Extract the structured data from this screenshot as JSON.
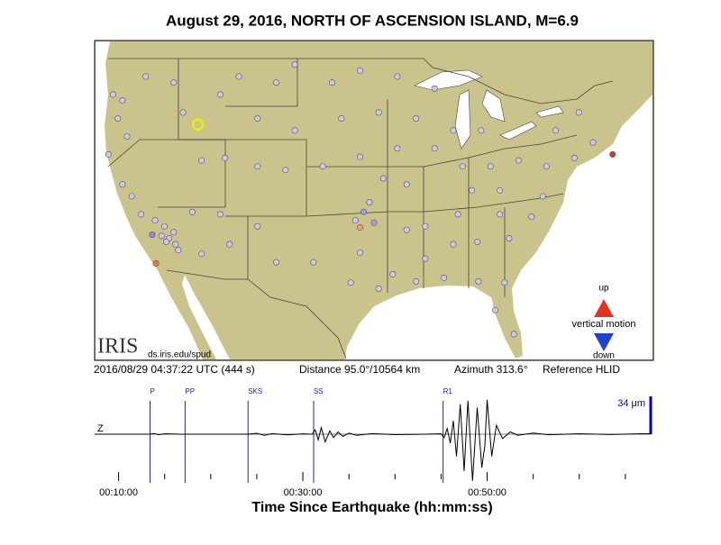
{
  "title": "August 29, 2016, NORTH OF ASCENSION ISLAND, M=6.9",
  "status": {
    "time": "2016/08/29 04:37:22 UTC (444 s)",
    "distance": "Distance  95.0°/10564 km",
    "azimuth": "Azimuth 313.6°",
    "reference": "Reference HLID"
  },
  "map": {
    "logo": "IRIS",
    "url": "ds.iris.edu/spud",
    "legend": {
      "up": "up",
      "label": "vertical motion",
      "down": "down"
    },
    "reference_station": {
      "lon": -114.4,
      "lat": 43.5,
      "color": "#f0f000"
    },
    "stations": {
      "lon": [
        -123.5,
        -122.5,
        -123,
        -122,
        -124,
        -122.5,
        -121.5,
        -120.5,
        -119,
        -118.3,
        -117.5,
        -116.8,
        -117,
        -116.5,
        -118,
        -117.8,
        -120,
        -117,
        -116,
        -112,
        -110,
        -106,
        -104,
        -100,
        -97,
        -93,
        -89,
        -108,
        -104,
        -99,
        -95,
        -91,
        -114,
        -111.5,
        -108,
        -105,
        -101,
        -97,
        -93,
        -89,
        -86,
        -83,
        -80,
        -77,
        -74,
        -72,
        -73.5,
        -76,
        -84,
        -87,
        -115,
        -112,
        -108,
        -106,
        -111,
        -114,
        -102,
        -98,
        -97,
        -95,
        -97.5,
        -96,
        -94.5,
        -92,
        -90,
        -92,
        -90,
        -87,
        -86.5,
        -84.4,
        -81,
        -78.6,
        -77.4,
        -82,
        -85,
        -82,
        -81.5,
        -82.5,
        -80.5,
        -84.3,
        -88,
        -91,
        -93.5,
        -69.9,
        -118.9,
        -97,
        -119.3,
        -96.6,
        -95.5
      ],
      "lat": [
        46,
        45.5,
        44,
        42.5,
        41,
        38.5,
        37.5,
        36,
        35.5,
        34.2,
        34,
        33.5,
        34.5,
        33,
        35,
        33.7,
        47.5,
        47,
        44.5,
        46,
        47.5,
        47,
        48.5,
        47,
        48,
        47.5,
        46.5,
        44,
        43,
        44,
        44.5,
        44,
        40.5,
        40.7,
        40,
        39.7,
        40,
        40.8,
        41.5,
        41.5,
        40,
        40,
        40.5,
        40,
        40.7,
        42,
        44.5,
        43,
        43,
        43,
        36.2,
        36,
        35,
        32,
        33.5,
        32.7,
        32,
        30.3,
        32.8,
        29.8,
        35.5,
        37,
        39,
        38.5,
        35,
        34.7,
        32.3,
        33.5,
        36,
        33.7,
        34,
        35.8,
        37.5,
        38,
        38,
        36,
        30.3,
        28,
        26,
        30.4,
        30.7,
        30.4,
        31,
        41,
        31.9,
        34.9,
        34.3,
        36.2,
        35.3
      ],
      "color": [
        "#c8c8f0",
        "#c8c8f0",
        "#c8c8f0",
        "#c8c8f0",
        "#c8c8f0",
        "#c8c8f0",
        "#c8c8f0",
        "#c8c8f0",
        "#c8c8f0",
        "#c8c8f0",
        "#c8c8f0",
        "#c8c8f0",
        "#c8c8f0",
        "#c8c8f0",
        "#c8c8f0",
        "#c8c8f0",
        "#c8c8f0",
        "#c8c8f0",
        "#c8c8f0",
        "#c8c8f0",
        "#c8c8f0",
        "#c8c8f0",
        "#c8c8f0",
        "#c8c8f0",
        "#c8c8f0",
        "#c8c8f0",
        "#c8c8f0",
        "#c8c8f0",
        "#c8c8f0",
        "#c8c8f0",
        "#c8c8f0",
        "#c8c8f0",
        "#c8c8f0",
        "#c8c8f0",
        "#c8c8f0",
        "#c8c8f0",
        "#c8c8f0",
        "#c8c8f0",
        "#c8c8f0",
        "#c8c8f0",
        "#c8c8f0",
        "#c8c8f0",
        "#c8c8f0",
        "#c8c8f0",
        "#c8c8f0",
        "#c8c8f0",
        "#c8c8f0",
        "#c8c8f0",
        "#c8c8f0",
        "#c8c8f0",
        "#c8c8f0",
        "#c8c8f0",
        "#c8c8f0",
        "#c8c8f0",
        "#c8c8f0",
        "#c8c8f0",
        "#c8c8f0",
        "#c8c8f0",
        "#c8c8f0",
        "#c8c8f0",
        "#c8c8f0",
        "#c8c8f0",
        "#c8c8f0",
        "#c8c8f0",
        "#c8c8f0",
        "#c8c8f0",
        "#c8c8f0",
        "#c8c8f0",
        "#c8c8f0",
        "#c8c8f0",
        "#c8c8f0",
        "#c8c8f0",
        "#c8c8f0",
        "#c8c8f0",
        "#c8c8f0",
        "#c8c8f0",
        "#c8c8f0",
        "#c8c8f0",
        "#c8c8f0",
        "#c8c8f0",
        "#c8c8f0",
        "#c8c8f0",
        "#c8c8f0",
        "#e83020",
        "#f07050",
        "#f0a080",
        "#9090e0",
        "#a0a0e8",
        "#a0a0e8"
      ]
    }
  },
  "chart_data": {
    "type": "line",
    "xlabel": "Time Since Earthquake (hh:mm:ss)",
    "channel": "Z",
    "xlim": [
      444,
      4065
    ],
    "xticks": [
      {
        "value": 600,
        "label": "00:10:00"
      },
      {
        "value": 1800,
        "label": "00:30:00"
      },
      {
        "value": 3000,
        "label": "00:50:00"
      }
    ],
    "minor_xticks": [
      900,
      1200,
      1500,
      2100,
      2400,
      2700,
      3300,
      3600,
      3900
    ],
    "scale_bar": {
      "value": 34,
      "label": "34 μm"
    },
    "phases": {
      "names": [
        "P",
        "PP",
        "SKS",
        "SS",
        "R1"
      ],
      "times": [
        805,
        1033,
        1443,
        1870,
        2713
      ],
      "color": "#2020c0"
    },
    "color": "#000000",
    "x": [
      444,
      800,
      830,
      860,
      900,
      1000,
      1440,
      1500,
      1550,
      1600,
      1700,
      1800,
      1860,
      1880,
      1900,
      1920,
      1945,
      1975,
      2000,
      2030,
      2060,
      2100,
      2150,
      2250,
      2400,
      2600,
      2700,
      2720,
      2740,
      2760,
      2780,
      2800,
      2825,
      2850,
      2875,
      2905,
      2935,
      2965,
      2985,
      3000,
      3030,
      3060,
      3100,
      3150,
      3200,
      3300,
      3400,
      3600,
      3800,
      4000,
      4065
    ],
    "values": [
      0,
      0,
      0.6,
      -0.5,
      0.4,
      0,
      0,
      0.8,
      -1,
      0.5,
      -0.6,
      0.3,
      0,
      4,
      -5,
      6,
      -7,
      3,
      -3,
      2,
      -2,
      1,
      -1,
      0.5,
      -0.4,
      0,
      0.4,
      -3,
      5,
      -8,
      12,
      -20,
      27,
      -33,
      30,
      -42,
      24,
      -30,
      -10,
      31,
      -20,
      8,
      -4,
      2,
      -1,
      1,
      -0.5,
      0.4,
      -0.3,
      0.4,
      0.5
    ]
  }
}
